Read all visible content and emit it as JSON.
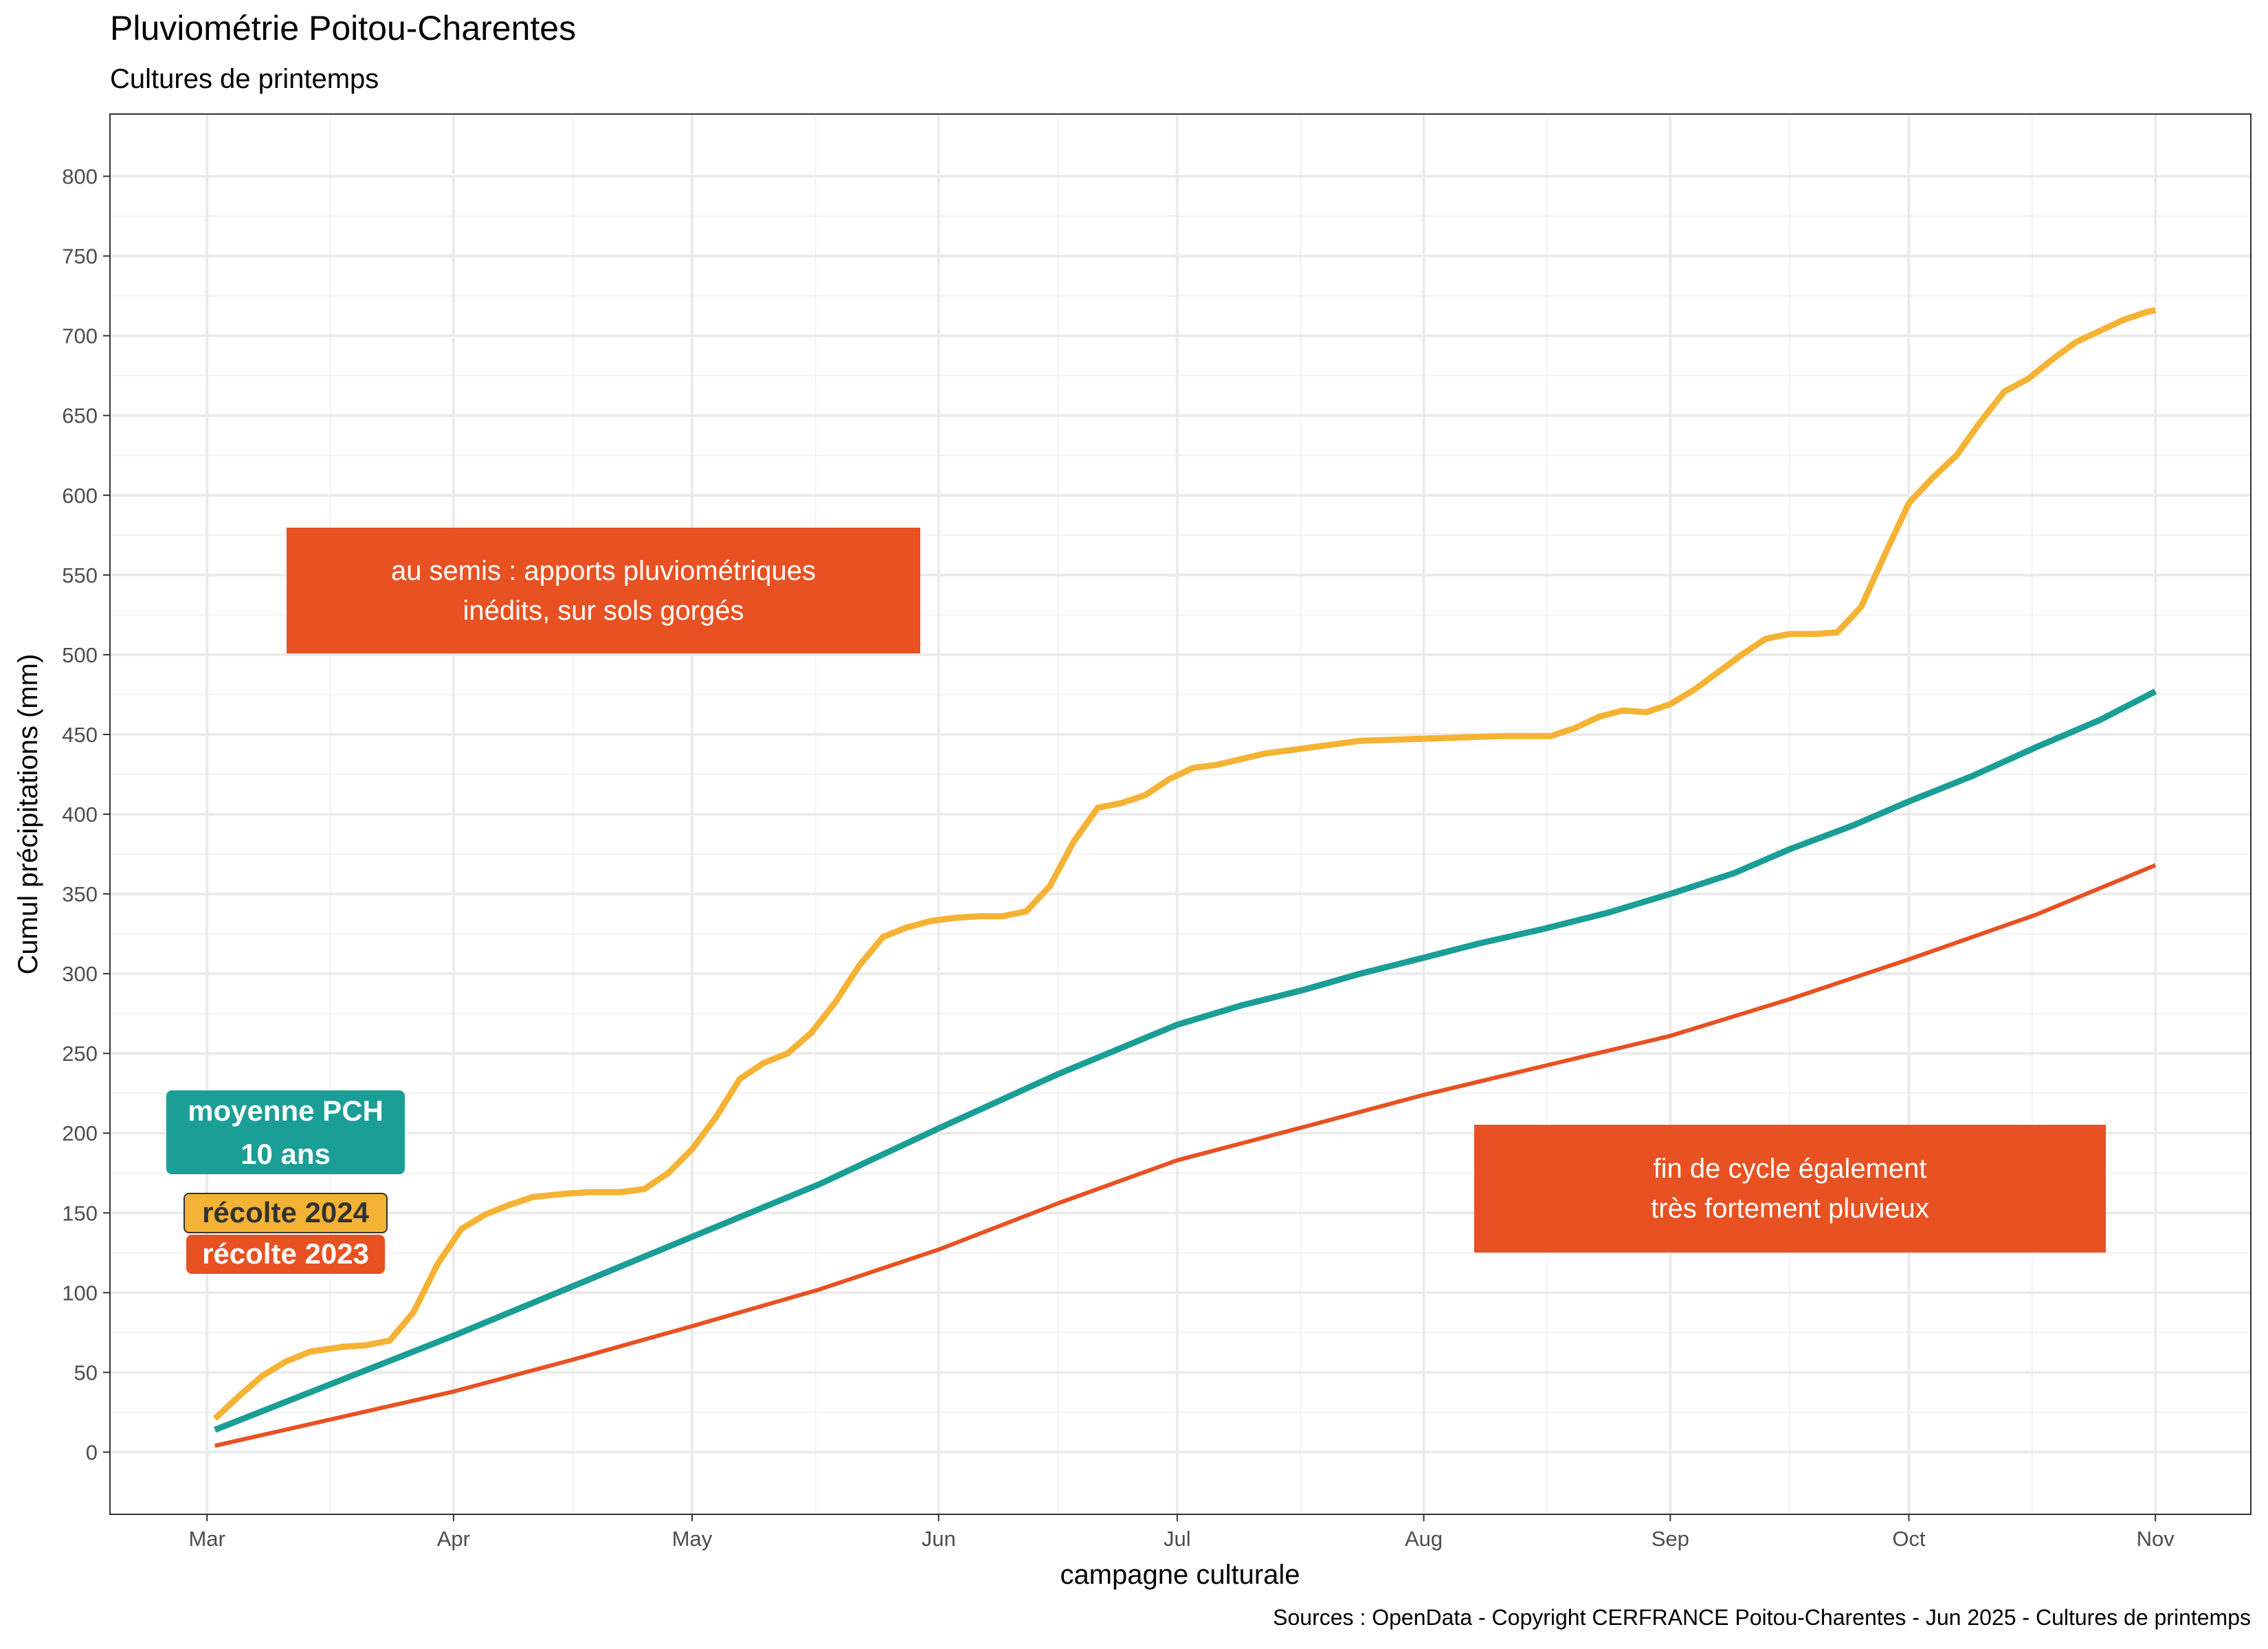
{
  "chart_data": {
    "type": "line",
    "title": "Pluviométrie Poitou-Charentes",
    "subtitle": "Cultures de printemps",
    "x_label": "campagne culturale",
    "y_label": "Cumul précipitations (mm)",
    "caption": "Sources : OpenData - Copyright CERFRANCE Poitou-Charentes - Jun 2025 - Cultures de printemps",
    "xlim": [
      -12.2,
      257
    ],
    "xticks": [
      {
        "value": 0,
        "label": "Mar"
      },
      {
        "value": 31,
        "label": "Apr"
      },
      {
        "value": 61,
        "label": "May"
      },
      {
        "value": 92,
        "label": "Jun"
      },
      {
        "value": 122,
        "label": "Jul"
      },
      {
        "value": 153,
        "label": "Aug"
      },
      {
        "value": 184,
        "label": "Sep"
      },
      {
        "value": 214,
        "label": "Oct"
      },
      {
        "value": 245,
        "label": "Nov"
      }
    ],
    "ylim": [
      -39,
      839
    ],
    "yticks": [
      0,
      50,
      100,
      150,
      200,
      250,
      300,
      350,
      400,
      450,
      500,
      550,
      600,
      650,
      700,
      750,
      800
    ],
    "grid": true,
    "series": [
      {
        "name": "récolte 2024",
        "color": "#f5b335",
        "x": [
          1,
          4,
          7,
          10,
          13,
          17,
          20,
          23,
          26,
          29,
          32,
          35,
          38,
          41,
          45,
          48,
          52,
          55,
          58,
          61,
          64,
          67,
          70,
          73,
          76,
          79,
          82,
          85,
          88,
          91,
          94,
          97,
          100,
          103,
          106,
          109,
          112,
          115,
          118,
          121,
          124,
          127,
          133,
          139,
          145,
          151,
          157,
          163,
          169,
          172,
          175,
          178,
          181,
          184,
          187,
          190,
          193,
          196,
          199,
          202,
          205,
          208,
          211,
          214,
          217,
          220,
          223,
          226,
          229,
          232,
          235,
          238,
          241,
          244,
          245
        ],
        "values": [
          21,
          35,
          48,
          57,
          63,
          66,
          67,
          70,
          88,
          118,
          140,
          149,
          155,
          160,
          162,
          163,
          163,
          165,
          175,
          190,
          210,
          234,
          244,
          250,
          263,
          282,
          305,
          323,
          329,
          333,
          335,
          336,
          336,
          339,
          355,
          383,
          404,
          407,
          412,
          422,
          429,
          431,
          438,
          442,
          446,
          447,
          448,
          449,
          449,
          454,
          461,
          465,
          464,
          469,
          478,
          489,
          500,
          510,
          513,
          513,
          514,
          530,
          563,
          595,
          611,
          625,
          646,
          665,
          673,
          685,
          696,
          703,
          710,
          715,
          716
        ]
      },
      {
        "name": "moyenne PCH\n10 ans",
        "color": "#1a9e96",
        "x": [
          1,
          31,
          46,
          61,
          77,
          92,
          107,
          122,
          130,
          138,
          145,
          153,
          160,
          168,
          176,
          184,
          192,
          199,
          207,
          214,
          222,
          230,
          238,
          245
        ],
        "values": [
          14,
          73,
          104,
          135,
          168,
          203,
          237,
          268,
          280,
          290,
          300,
          310,
          319,
          328,
          338,
          350,
          363,
          378,
          393,
          408,
          424,
          442,
          459,
          477
        ]
      },
      {
        "name": "récolte 2023",
        "color": "#e85122",
        "x": [
          1,
          16,
          31,
          46,
          61,
          77,
          92,
          107,
          122,
          138,
          153,
          168,
          184,
          199,
          214,
          230,
          245
        ],
        "values": [
          4,
          21,
          38,
          58,
          79,
          102,
          127,
          156,
          183,
          204,
          224,
          242,
          261,
          284,
          309,
          337,
          368
        ]
      }
    ],
    "annotations": [
      {
        "text": "au semis : apports pluviométriques\ninédits, sur sols gorgés",
        "color": "#e85122"
      },
      {
        "text": "fin de cycle également\ntrès fortement pluvieux",
        "color": "#e85122"
      }
    ]
  }
}
